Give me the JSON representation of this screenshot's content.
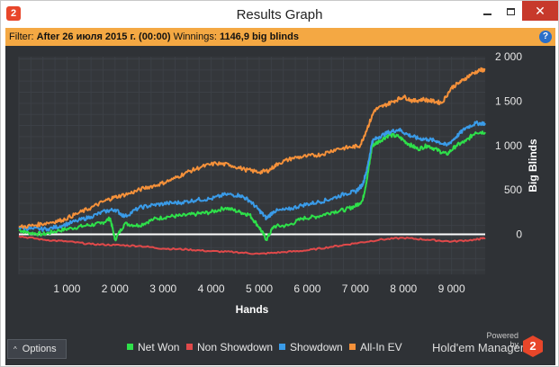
{
  "window": {
    "title": "Results Graph",
    "app_icon": "2",
    "controls": {
      "minimize_icon": "minimize-icon",
      "maximize_icon": "maximize-icon",
      "close_icon": "close-icon",
      "close_glyph": "✕"
    }
  },
  "filter": {
    "prefix": "Filter:",
    "value": "After 26 июля 2015 г. (00:00)",
    "winnings_label": "Winnings:",
    "winnings_value": "1146,9 big blinds",
    "help_glyph": "?"
  },
  "options": {
    "label": "Options",
    "caret": "^"
  },
  "branding": {
    "powered_by": "Powered by",
    "name": "Hold'em Manager",
    "logo_glyph": "2"
  },
  "colors": {
    "panel_bg": "#2f3236",
    "grid": "#3c4046",
    "filter_bar": "#f4a843",
    "net_won": "#2ee04a",
    "non_showdown": "#e0494a",
    "showdown": "#3a9be8",
    "all_in_ev": "#f5913a",
    "zero_line": "#ffffff"
  },
  "chart_data": {
    "type": "line",
    "xlabel": "Hands",
    "ylabel": "Big Blinds",
    "xlim": [
      0,
      9700
    ],
    "ylim": [
      -450,
      2000
    ],
    "x_ticks": [
      1000,
      2000,
      3000,
      4000,
      5000,
      6000,
      7000,
      8000,
      9000
    ],
    "x_tick_labels": [
      "1 000",
      "2 000",
      "3 000",
      "4 000",
      "5 000",
      "6 000",
      "7 000",
      "8 000",
      "9 000"
    ],
    "y_ticks": [
      0,
      500,
      1000,
      1500,
      2000
    ],
    "y_tick_labels": [
      "0",
      "500",
      "1 000",
      "1 500",
      "2 000"
    ],
    "y_axis_side": "right",
    "grid": true,
    "legend": "bottom",
    "series": [
      {
        "name": "Net Won",
        "color": "#2ee04a",
        "x": [
          0,
          200,
          500,
          800,
          1100,
          1400,
          1700,
          1900,
          2000,
          2200,
          2500,
          2800,
          3100,
          3400,
          3700,
          4000,
          4300,
          4600,
          4800,
          5000,
          5150,
          5300,
          5600,
          5900,
          6200,
          6500,
          6800,
          7000,
          7150,
          7250,
          7350,
          7500,
          7700,
          7900,
          8100,
          8300,
          8500,
          8700,
          8900,
          9100,
          9300,
          9500,
          9700
        ],
        "y": [
          50,
          20,
          0,
          40,
          70,
          100,
          120,
          180,
          -60,
          120,
          100,
          170,
          200,
          210,
          230,
          250,
          300,
          250,
          220,
          80,
          -60,
          90,
          100,
          180,
          200,
          250,
          280,
          320,
          380,
          650,
          1000,
          1050,
          1120,
          1100,
          1020,
          960,
          1000,
          950,
          900,
          1000,
          1050,
          1150,
          1150
        ]
      },
      {
        "name": "Non Showdown",
        "color": "#e0494a",
        "x": [
          0,
          500,
          1000,
          1500,
          2000,
          2500,
          3000,
          3500,
          4000,
          4500,
          5000,
          5500,
          6000,
          6500,
          7000,
          7500,
          8000,
          8500,
          9000,
          9500,
          9700
        ],
        "y": [
          -20,
          -60,
          -80,
          -110,
          -120,
          -130,
          -160,
          -170,
          -190,
          -200,
          -220,
          -200,
          -180,
          -140,
          -100,
          -60,
          -40,
          -60,
          -80,
          -60,
          -40
        ]
      },
      {
        "name": "Showdown",
        "color": "#3a9be8",
        "x": [
          0,
          300,
          600,
          900,
          1200,
          1500,
          1800,
          2000,
          2200,
          2500,
          2800,
          3100,
          3400,
          3700,
          4000,
          4300,
          4600,
          4800,
          5000,
          5150,
          5300,
          5600,
          5900,
          6200,
          6500,
          6800,
          7000,
          7150,
          7250,
          7350,
          7500,
          7700,
          7900,
          8100,
          8300,
          8500,
          8700,
          8900,
          9100,
          9300,
          9500,
          9700
        ],
        "y": [
          80,
          60,
          60,
          100,
          150,
          200,
          260,
          280,
          200,
          300,
          330,
          350,
          360,
          390,
          400,
          450,
          440,
          380,
          270,
          180,
          260,
          280,
          330,
          360,
          400,
          460,
          480,
          560,
          750,
          1050,
          1100,
          1150,
          1180,
          1120,
          1080,
          1070,
          1050,
          1000,
          1100,
          1200,
          1250,
          1250
        ]
      },
      {
        "name": "All-In EV",
        "color": "#f5913a",
        "x": [
          0,
          300,
          600,
          900,
          1200,
          1500,
          1800,
          2000,
          2300,
          2600,
          2900,
          3200,
          3500,
          3800,
          4100,
          4400,
          4700,
          5000,
          5200,
          5400,
          5700,
          6000,
          6300,
          6600,
          6900,
          7100,
          7250,
          7400,
          7600,
          7800,
          8000,
          8200,
          8400,
          8600,
          8800,
          9000,
          9200,
          9400,
          9600,
          9700
        ],
        "y": [
          80,
          100,
          130,
          160,
          230,
          300,
          380,
          420,
          460,
          520,
          560,
          620,
          700,
          760,
          800,
          780,
          730,
          700,
          720,
          800,
          860,
          880,
          900,
          960,
          980,
          1000,
          1200,
          1400,
          1450,
          1500,
          1550,
          1500,
          1520,
          1500,
          1480,
          1650,
          1720,
          1800,
          1850,
          1850
        ]
      }
    ]
  }
}
